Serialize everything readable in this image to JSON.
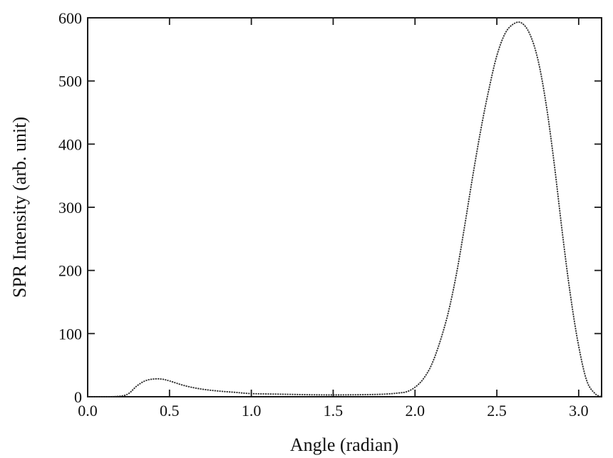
{
  "chart_data": {
    "type": "line",
    "title": "",
    "xlabel": "Angle (radian)",
    "ylabel": "SPR Intensity (arb. unit)",
    "xlim": [
      0.0,
      3.14
    ],
    "ylim": [
      0,
      600
    ],
    "xticks": [
      0.0,
      0.5,
      1.0,
      1.5,
      2.0,
      2.5,
      3.0
    ],
    "xtick_labels": [
      "0.0",
      "0.5",
      "1.0",
      "1.5",
      "2.0",
      "2.5",
      "3.0"
    ],
    "yticks": [
      0,
      100,
      200,
      300,
      400,
      500,
      600
    ],
    "ytick_labels": [
      "0",
      "100",
      "200",
      "300",
      "400",
      "500",
      "600"
    ],
    "grid": false,
    "line_style": "dotted",
    "series": [
      {
        "x": [
          0.0,
          0.1,
          0.2,
          0.25,
          0.3,
          0.35,
          0.4,
          0.45,
          0.5,
          0.6,
          0.7,
          0.8,
          0.9,
          1.0,
          1.2,
          1.4,
          1.6,
          1.8,
          1.9,
          1.95,
          2.0,
          2.05,
          2.1,
          2.15,
          2.2,
          2.25,
          2.3,
          2.35,
          2.4,
          2.45,
          2.5,
          2.55,
          2.6,
          2.65,
          2.7,
          2.75,
          2.8,
          2.85,
          2.9,
          2.95,
          3.0,
          3.05,
          3.1,
          3.14
        ],
        "y": [
          0,
          0,
          1,
          5,
          17,
          25,
          28,
          28,
          25,
          17,
          12,
          9,
          7,
          5,
          4,
          3,
          3,
          4,
          6,
          8,
          15,
          28,
          50,
          85,
          130,
          190,
          265,
          345,
          420,
          485,
          540,
          575,
          590,
          592,
          575,
          535,
          465,
          370,
          260,
          160,
          80,
          25,
          5,
          0
        ]
      }
    ]
  }
}
